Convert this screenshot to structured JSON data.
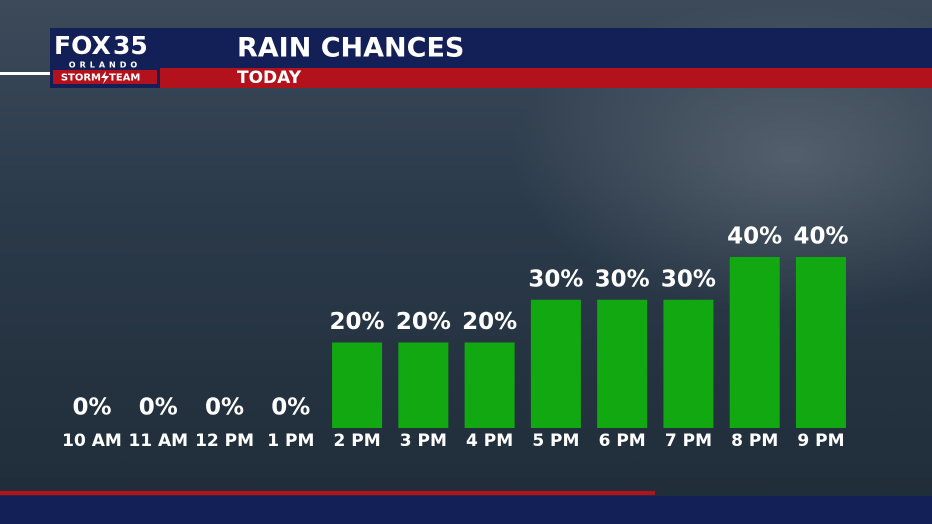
{
  "logo": {
    "brand": "FOX",
    "number": "35",
    "city": "ORLANDO",
    "team_left": "STORM",
    "team_right": "TEAM"
  },
  "chart_data": {
    "type": "bar",
    "title": "RAIN CHANCES",
    "subtitle": "TODAY",
    "categories": [
      "10 AM",
      "11 AM",
      "12 PM",
      "1 PM",
      "2 PM",
      "3 PM",
      "4 PM",
      "5 PM",
      "6 PM",
      "7 PM",
      "8 PM",
      "9 PM"
    ],
    "values": [
      0,
      0,
      0,
      0,
      20,
      20,
      20,
      30,
      30,
      30,
      40,
      40
    ],
    "value_labels": [
      "0%",
      "0%",
      "0%",
      "0%",
      "20%",
      "20%",
      "20%",
      "30%",
      "30%",
      "30%",
      "40%",
      "40%"
    ],
    "color": "#12a812"
  }
}
